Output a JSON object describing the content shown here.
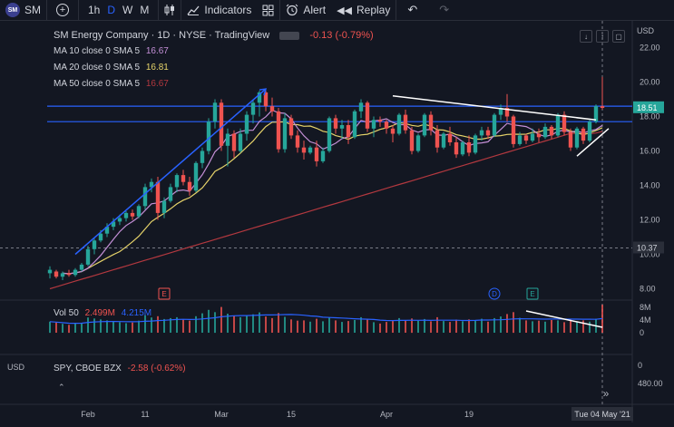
{
  "toolbar": {
    "symbol": "SM",
    "logo_text": "SM",
    "intervals": [
      "1h",
      "D",
      "W",
      "M"
    ],
    "active_interval": "D",
    "indicators_label": "Indicators",
    "alert_label": "Alert",
    "replay_label": "Replay"
  },
  "legend": {
    "title": "SM Energy Company · 1D · NYSE · TradingView",
    "change": "-0.13 (-0.79%)",
    "ma10_label": "MA 10 close 0 SMA 5",
    "ma10_value": "16.67",
    "ma20_label": "MA 20 close 0 SMA 5",
    "ma20_value": "16.81",
    "ma50_label": "MA 50 close 0 SMA 5",
    "ma50_value": "16.67",
    "vol_label": "Vol 50",
    "vol_value1": "2.499M",
    "vol_value2": "4.215M",
    "spy_label": "SPY, CBOE BZX",
    "spy_change": "-2.58 (-0.62%)"
  },
  "colors": {
    "up": "#26a69a",
    "down": "#ef5350",
    "ma10": "#c38fd6",
    "ma20": "#e6d36a",
    "ma50": "#b2383f",
    "hline": "#2962ff",
    "vol_ma": "#2962ff",
    "trend_blue": "#2962ff",
    "trend_white": "#ffffff",
    "price_label_bg": "#26a69a",
    "crosshair_label_bg": "#2a2e39",
    "currency_label": "#b2b5be"
  },
  "axes": {
    "currency": "USD",
    "price_ticks": [
      "22.00",
      "20.00",
      "18.00",
      "16.00",
      "14.00",
      "12.00",
      "10.00",
      "8.00"
    ],
    "current_price_label": "18.51",
    "crosshair_price_label": "10.37",
    "volume_ticks": [
      "8M",
      "4M",
      "0"
    ],
    "spy_currency": "USD",
    "spy_ticks": [
      "480.00",
      "0"
    ],
    "date_ticks": [
      "Feb",
      "11",
      "Mar",
      "15",
      "Apr",
      "19",
      "17"
    ],
    "crosshair_date_label": "Tue 04 May '21"
  },
  "markers": {
    "earnings_1": "E",
    "dividend": "D",
    "earnings_2": "E"
  },
  "chart_data": {
    "type": "candlestick",
    "title": "SM Energy Company · 1D · NYSE · TradingView",
    "ylim": [
      7.5,
      22.5
    ],
    "volume_ylim": [
      0,
      10
    ],
    "horizontal_levels": [
      18.6,
      17.7
    ],
    "crosshair": {
      "date": "Tue 04 May '21",
      "price": 10.37
    },
    "candles": [
      [
        8.9,
        9.3,
        8.6,
        9.1
      ],
      [
        9.0,
        9.1,
        8.6,
        8.7
      ],
      [
        8.7,
        9.0,
        8.5,
        8.9
      ],
      [
        8.9,
        9.1,
        8.7,
        8.8
      ],
      [
        8.8,
        9.2,
        8.7,
        9.1
      ],
      [
        9.1,
        9.5,
        9.0,
        9.4
      ],
      [
        9.4,
        10.5,
        9.3,
        10.3
      ],
      [
        10.3,
        10.9,
        10.0,
        10.8
      ],
      [
        10.8,
        11.4,
        10.7,
        11.2
      ],
      [
        11.2,
        11.8,
        11.0,
        11.6
      ],
      [
        11.6,
        12.1,
        11.4,
        11.9
      ],
      [
        11.9,
        12.3,
        11.7,
        12.1
      ],
      [
        12.1,
        12.5,
        11.9,
        12.4
      ],
      [
        12.4,
        12.6,
        12.0,
        12.2
      ],
      [
        12.2,
        12.9,
        12.1,
        12.8
      ],
      [
        12.8,
        14.1,
        12.6,
        13.9
      ],
      [
        13.9,
        14.4,
        13.6,
        14.2
      ],
      [
        14.2,
        14.5,
        12.0,
        12.4
      ],
      [
        12.4,
        13.3,
        12.1,
        13.1
      ],
      [
        13.1,
        14.1,
        13.0,
        13.9
      ],
      [
        13.9,
        14.7,
        13.6,
        14.6
      ],
      [
        14.6,
        14.9,
        14.0,
        14.2
      ],
      [
        14.2,
        14.5,
        13.4,
        13.7
      ],
      [
        13.7,
        15.4,
        13.6,
        15.3
      ],
      [
        15.3,
        16.2,
        15.0,
        16.0
      ],
      [
        16.0,
        17.9,
        15.8,
        17.7
      ],
      [
        17.7,
        19.0,
        17.3,
        18.8
      ],
      [
        18.8,
        19.0,
        16.0,
        16.3
      ],
      [
        16.3,
        17.3,
        15.1,
        17.0
      ],
      [
        17.0,
        17.2,
        15.6,
        16.0
      ],
      [
        16.0,
        17.3,
        15.9,
        17.0
      ],
      [
        17.0,
        18.3,
        16.6,
        18.1
      ],
      [
        18.1,
        19.0,
        17.6,
        18.8
      ],
      [
        18.8,
        19.5,
        18.0,
        19.4
      ],
      [
        19.4,
        19.5,
        18.3,
        18.6
      ],
      [
        18.6,
        19.1,
        18.0,
        18.3
      ],
      [
        18.3,
        18.5,
        15.9,
        16.1
      ],
      [
        16.1,
        18.2,
        15.9,
        17.9
      ],
      [
        17.9,
        18.1,
        16.7,
        16.9
      ],
      [
        16.9,
        17.2,
        15.9,
        16.2
      ],
      [
        16.2,
        16.6,
        15.5,
        15.9
      ],
      [
        15.9,
        16.3,
        15.8,
        16.2
      ],
      [
        16.2,
        16.6,
        15.1,
        15.4
      ],
      [
        15.4,
        16.2,
        15.3,
        16.0
      ],
      [
        16.0,
        18.0,
        15.9,
        17.9
      ],
      [
        17.9,
        18.1,
        17.0,
        17.3
      ],
      [
        17.3,
        17.8,
        16.7,
        17.5
      ],
      [
        17.5,
        17.8,
        16.4,
        16.8
      ],
      [
        16.8,
        18.4,
        16.7,
        18.3
      ],
      [
        18.3,
        19.0,
        17.9,
        18.8
      ],
      [
        18.8,
        18.9,
        17.1,
        17.3
      ],
      [
        17.3,
        18.0,
        16.8,
        17.8
      ],
      [
        17.8,
        18.0,
        17.4,
        17.7
      ],
      [
        17.7,
        17.8,
        17.0,
        17.3
      ],
      [
        17.3,
        17.5,
        16.5,
        17.0
      ],
      [
        17.0,
        18.2,
        16.9,
        18.1
      ],
      [
        18.1,
        18.4,
        17.0,
        17.2
      ],
      [
        17.2,
        17.4,
        15.8,
        16.0
      ],
      [
        16.0,
        17.0,
        15.9,
        16.9
      ],
      [
        16.9,
        18.2,
        16.8,
        18.1
      ],
      [
        18.1,
        18.3,
        16.9,
        17.2
      ],
      [
        17.2,
        17.5,
        15.9,
        16.2
      ],
      [
        16.2,
        17.1,
        16.1,
        17.0
      ],
      [
        17.0,
        17.4,
        16.3,
        16.5
      ],
      [
        16.5,
        16.8,
        15.6,
        15.8
      ],
      [
        15.8,
        16.6,
        15.7,
        16.5
      ],
      [
        16.5,
        16.9,
        15.7,
        15.9
      ],
      [
        15.9,
        17.0,
        15.8,
        16.9
      ],
      [
        16.9,
        17.4,
        16.6,
        17.2
      ],
      [
        17.2,
        17.4,
        16.7,
        16.9
      ],
      [
        16.9,
        18.2,
        16.8,
        18.1
      ],
      [
        18.1,
        18.7,
        17.8,
        18.5
      ],
      [
        18.5,
        19.3,
        17.7,
        18.0
      ],
      [
        18.0,
        18.1,
        16.2,
        16.4
      ],
      [
        16.4,
        17.1,
        16.3,
        16.9
      ],
      [
        16.9,
        17.0,
        16.4,
        16.6
      ],
      [
        16.6,
        17.3,
        16.5,
        17.0
      ],
      [
        17.0,
        17.3,
        16.5,
        16.8
      ],
      [
        16.8,
        17.6,
        16.7,
        17.4
      ],
      [
        17.4,
        17.5,
        16.7,
        16.9
      ],
      [
        16.9,
        18.2,
        16.8,
        18.1
      ],
      [
        18.1,
        18.3,
        16.9,
        17.1
      ],
      [
        17.1,
        17.3,
        16.0,
        16.2
      ],
      [
        16.2,
        17.4,
        16.1,
        17.3
      ],
      [
        17.3,
        17.4,
        16.4,
        16.6
      ],
      [
        16.6,
        17.8,
        16.5,
        17.7
      ],
      [
        17.7,
        18.7,
        17.6,
        18.6
      ],
      [
        18.6,
        20.3,
        18.4,
        18.5
      ]
    ],
    "volume": [
      3.5,
      3.2,
      2.8,
      2.5,
      2.9,
      3.1,
      4.8,
      4.5,
      4.2,
      3.9,
      3.6,
      3.3,
      3.0,
      3.2,
      3.8,
      5.5,
      4.8,
      5.2,
      4.3,
      4.6,
      4.9,
      4.1,
      3.8,
      5.2,
      6.1,
      7.2,
      6.5,
      8.1,
      6.0,
      5.4,
      4.9,
      5.3,
      5.8,
      6.4,
      5.1,
      4.6,
      6.2,
      5.0,
      4.2,
      3.8,
      3.9,
      3.5,
      4.4,
      3.6,
      4.8,
      3.9,
      3.4,
      3.7,
      4.0,
      4.9,
      4.1,
      3.3,
      2.9,
      3.4,
      3.7,
      4.6,
      3.9,
      4.5,
      3.8,
      4.3,
      3.6,
      4.9,
      3.7,
      3.4,
      4.1,
      3.6,
      4.2,
      3.8,
      4.4,
      3.5,
      4.6,
      5.1,
      5.9,
      6.5,
      4.7,
      3.9,
      3.6,
      3.8,
      3.5,
      4.0,
      3.9,
      3.3,
      4.2,
      3.6,
      3.9,
      3.5,
      4.4,
      8.8
    ]
  }
}
